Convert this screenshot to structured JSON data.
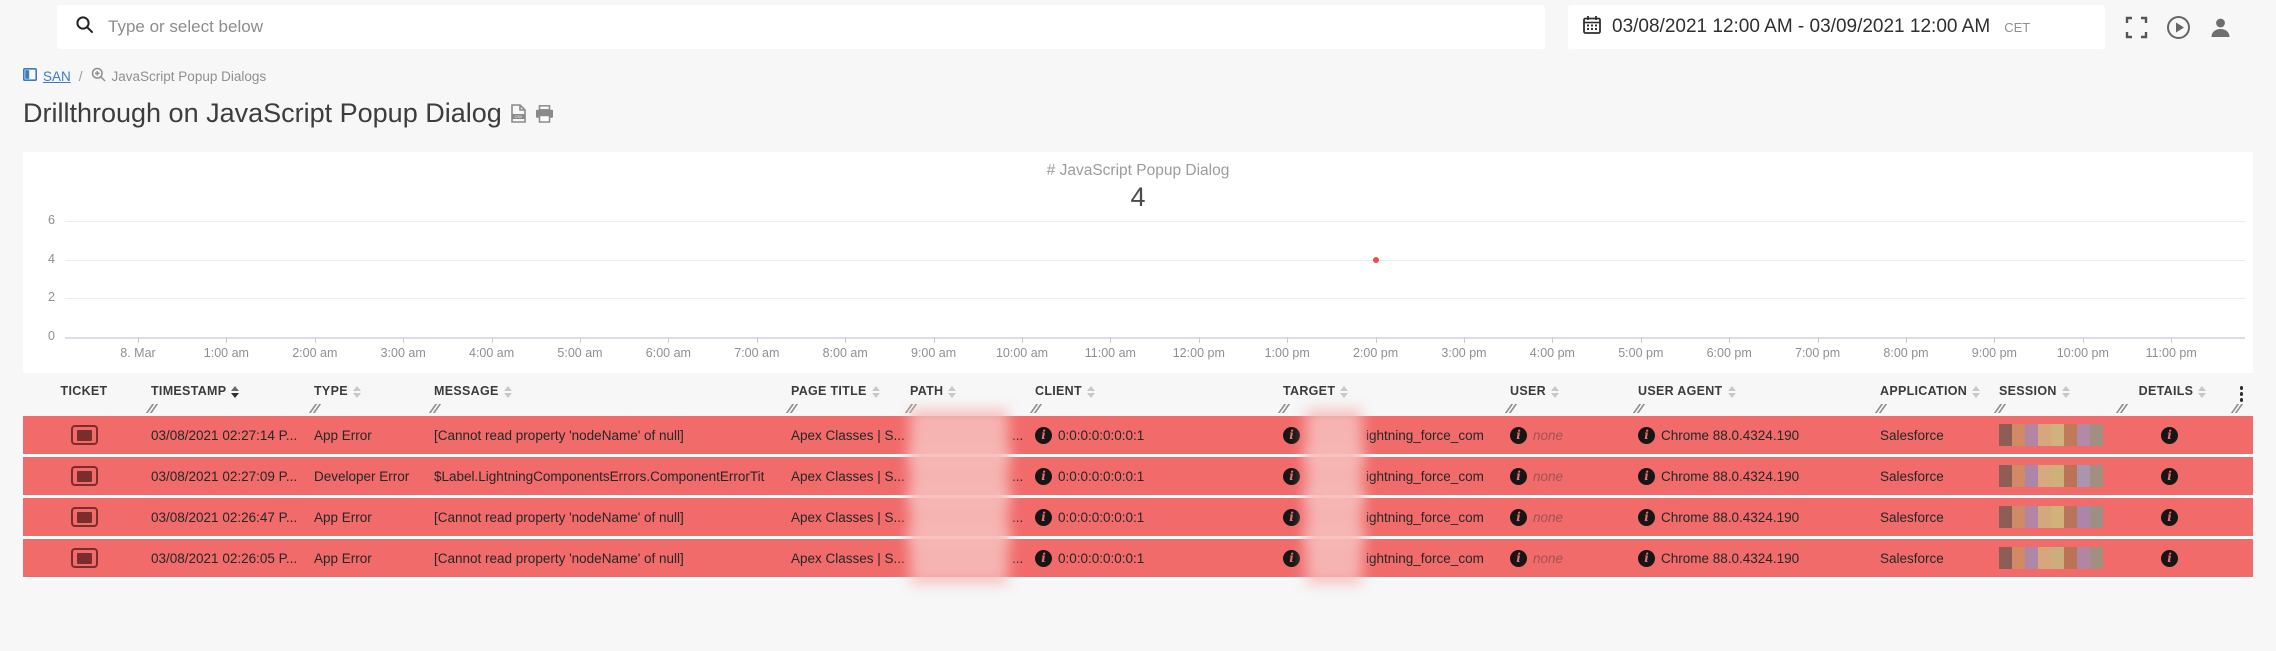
{
  "topbar": {
    "search_placeholder": "Type or select below",
    "search_icon": "search-icon",
    "date_range": "03/08/2021 12:00 AM - 03/09/2021 12:00 AM",
    "timezone": "CET",
    "icons": [
      "calendar-icon",
      "fullscreen-icon",
      "play-circle-icon",
      "user-icon"
    ]
  },
  "breadcrumb": {
    "root": "SAN",
    "root_icon": "dashboard-grid-icon",
    "separator": "/",
    "current": "JavaScript Popup Dialogs",
    "current_icon": "zoom-in-icon"
  },
  "page_header": {
    "title": "Drillthrough on JavaScript Popup Dialog",
    "action_icons": [
      "csv-export-icon",
      "print-icon"
    ]
  },
  "chart_data": {
    "type": "scatter",
    "title": "# JavaScript Popup Dialog",
    "displayed_total": "4",
    "x": [
      "8. Mar",
      "1:00 am",
      "2:00 am",
      "3:00 am",
      "4:00 am",
      "5:00 am",
      "6:00 am",
      "7:00 am",
      "8:00 am",
      "9:00 am",
      "10:00 am",
      "11:00 am",
      "12:00 pm",
      "1:00 pm",
      "2:00 pm",
      "3:00 pm",
      "4:00 pm",
      "5:00 pm",
      "6:00 pm",
      "7:00 pm",
      "8:00 pm",
      "9:00 pm",
      "10:00 pm",
      "11:00 pm"
    ],
    "points": [
      {
        "x": "2:00 pm",
        "y": 4
      }
    ],
    "ylim": [
      0,
      6
    ],
    "yticks": [
      0,
      2,
      4,
      6
    ],
    "grid": "horizontal",
    "legend": false,
    "point_color": "#ef4b4b"
  },
  "table": {
    "columns": [
      {
        "id": "ticket",
        "label": "TICKET",
        "sortable": false
      },
      {
        "id": "timestamp",
        "label": "TIMESTAMP",
        "sortable": true,
        "sorted": "desc"
      },
      {
        "id": "type",
        "label": "TYPE",
        "sortable": true
      },
      {
        "id": "message",
        "label": "MESSAGE",
        "sortable": true
      },
      {
        "id": "page_title",
        "label": "PAGE TITLE",
        "sortable": true
      },
      {
        "id": "path",
        "label": "PATH",
        "sortable": true
      },
      {
        "id": "client",
        "label": "CLIENT",
        "sortable": true
      },
      {
        "id": "target",
        "label": "TARGET",
        "sortable": true
      },
      {
        "id": "user",
        "label": "USER",
        "sortable": true
      },
      {
        "id": "user_agent",
        "label": "USER AGENT",
        "sortable": true
      },
      {
        "id": "application",
        "label": "APPLICATION",
        "sortable": true
      },
      {
        "id": "session",
        "label": "SESSION",
        "sortable": true
      },
      {
        "id": "details",
        "label": "DETAILS",
        "sortable": true
      }
    ],
    "rows": [
      {
        "timestamp": "03/08/2021 02:27:14 P...",
        "type": "App Error",
        "message": "[Cannot read property 'nodeName' of null]",
        "page_title": "Apex Classes | S...",
        "path_redacted": true,
        "path_visible": "...",
        "client": "0:0:0:0:0:0:0:1",
        "target_redacted": true,
        "target_visible": "ightning_force_com",
        "user": "none",
        "user_agent": "Chrome 88.0.4324.190",
        "application": "Salesforce",
        "session_colors": [
          "#8e5d55",
          "#d18a64",
          "#b286a2",
          "#d8a67c",
          "#d0b27e",
          "#c07a58",
          "#b289a6",
          "#a18f80"
        ]
      },
      {
        "timestamp": "03/08/2021 02:27:09 P...",
        "type": "Developer Error",
        "message": "$Label.LightningComponentsErrors.ComponentErrorTit",
        "page_title": "Apex Classes | S...",
        "path_redacted": true,
        "path_visible": "...",
        "client": "0:0:0:0:0:0:0:1",
        "target_redacted": true,
        "target_visible": "ightning_force_com",
        "user": "none",
        "user_agent": "Chrome 88.0.4324.190",
        "application": "Salesforce",
        "session_colors": [
          "#8e5d55",
          "#d08a66",
          "#ab86a8",
          "#d8a881",
          "#cfb07a",
          "#bb7355",
          "#a995ae",
          "#a18f80"
        ]
      },
      {
        "timestamp": "03/08/2021 02:26:47 P...",
        "type": "App Error",
        "message": "[Cannot read property 'nodeName' of null]",
        "page_title": "Apex Classes | S...",
        "path_redacted": true,
        "path_visible": "...",
        "client": "0:0:0:0:0:0:0:1",
        "target_redacted": true,
        "target_visible": "ightning_force_com",
        "user": "none",
        "user_agent": "Chrome 88.0.4324.190",
        "application": "Salesforce",
        "session_colors": [
          "#8e5d55",
          "#cf8a68",
          "#b286a2",
          "#d2a87e",
          "#d0b27a",
          "#b9745a",
          "#ab86a8",
          "#9c8f84"
        ]
      },
      {
        "timestamp": "03/08/2021 02:26:05 P...",
        "type": "App Error",
        "message": "[Cannot read property 'nodeName' of null]",
        "page_title": "Apex Classes | S...",
        "path_redacted": true,
        "path_visible": "...",
        "client": "0:0:0:0:0:0:0:1",
        "target_redacted": true,
        "target_visible": "ightning_force_com",
        "user": "none",
        "user_agent": "Chrome 88.0.4324.190",
        "application": "Salesforce",
        "session_colors": [
          "#8e5d55",
          "#d18a64",
          "#ae86a6",
          "#d8a67c",
          "#ccae7c",
          "#bb7355",
          "#b286a2",
          "#a18f80"
        ]
      }
    ],
    "row_menu_icon": "kebab-menu-icon",
    "ticket_icon": "ticket-icon",
    "info_icon": "info-icon"
  },
  "colors": {
    "row_background": "#f16b6b",
    "row_separator": "#ffffff",
    "ticket_icon": "#7b2c2c",
    "link": "#3a7cc0",
    "point": "#ef4b4b",
    "page_background": "#f7f7f8"
  }
}
